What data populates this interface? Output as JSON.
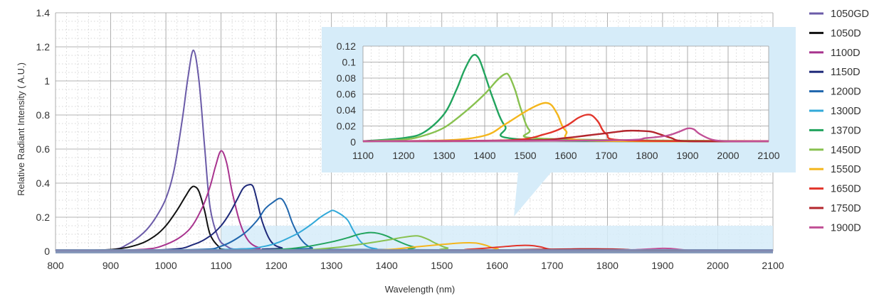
{
  "chart_data": [
    {
      "type": "line",
      "title": "",
      "xlabel": "Wavelength (nm)",
      "ylabel": "Relative Radiant Intensity ( A.U.)",
      "xlim": [
        800,
        2100
      ],
      "ylim": [
        0,
        1.4
      ],
      "xticks": [
        "800",
        "900",
        "1000",
        "1100",
        "1200",
        "1300",
        "1400",
        "1500",
        "1600",
        "1700",
        "1800",
        "1900",
        "2000",
        "2100"
      ],
      "yticks": [
        "0",
        "0.2",
        "0.4",
        "0.6",
        "0.8",
        "1",
        "1.2",
        "1.4"
      ],
      "grid": true,
      "legend_position": "right",
      "series": [
        {
          "name": "1050GD",
          "color": "#6b5ba8",
          "x": [
            800,
            900,
            930,
            960,
            980,
            1000,
            1015,
            1030,
            1040,
            1050,
            1060,
            1070,
            1080,
            1095,
            1110,
            1130,
            1200,
            2100
          ],
          "y": [
            0.005,
            0.01,
            0.04,
            0.11,
            0.19,
            0.31,
            0.48,
            0.78,
            1.02,
            1.18,
            1.0,
            0.62,
            0.26,
            0.08,
            0.03,
            0.01,
            0.005,
            0.005
          ]
        },
        {
          "name": "1050D",
          "color": "#111111",
          "x": [
            800,
            900,
            950,
            980,
            1000,
            1020,
            1035,
            1045,
            1052,
            1060,
            1070,
            1080,
            1095,
            1110,
            1200,
            2100
          ],
          "y": [
            0.005,
            0.01,
            0.04,
            0.09,
            0.15,
            0.24,
            0.32,
            0.37,
            0.38,
            0.35,
            0.24,
            0.1,
            0.03,
            0.01,
            0.005,
            0.005
          ]
        },
        {
          "name": "1100D",
          "color": "#a8338e",
          "x": [
            800,
            950,
            1000,
            1040,
            1065,
            1080,
            1090,
            1100,
            1110,
            1120,
            1135,
            1150,
            1170,
            1200,
            2100
          ],
          "y": [
            0.005,
            0.01,
            0.04,
            0.12,
            0.25,
            0.38,
            0.5,
            0.59,
            0.52,
            0.35,
            0.16,
            0.06,
            0.02,
            0.01,
            0.005
          ]
        },
        {
          "name": "1150D",
          "color": "#1f2a7a",
          "x": [
            800,
            1000,
            1050,
            1080,
            1100,
            1115,
            1130,
            1140,
            1150,
            1158,
            1165,
            1175,
            1190,
            1210,
            1250,
            2100
          ],
          "y": [
            0.005,
            0.01,
            0.04,
            0.09,
            0.15,
            0.22,
            0.31,
            0.37,
            0.39,
            0.38,
            0.3,
            0.17,
            0.06,
            0.02,
            0.01,
            0.005
          ]
        },
        {
          "name": "1200D",
          "color": "#2066ad",
          "x": [
            800,
            1050,
            1100,
            1140,
            1165,
            1180,
            1195,
            1205,
            1212,
            1220,
            1230,
            1245,
            1265,
            1300,
            2100
          ],
          "y": [
            0.005,
            0.01,
            0.03,
            0.1,
            0.18,
            0.25,
            0.29,
            0.31,
            0.3,
            0.25,
            0.16,
            0.07,
            0.02,
            0.01,
            0.005
          ]
        },
        {
          "name": "1300D",
          "color": "#32a9d9",
          "x": [
            800,
            1100,
            1180,
            1230,
            1260,
            1280,
            1295,
            1302,
            1310,
            1320,
            1330,
            1340,
            1355,
            1380,
            1450,
            2100
          ],
          "y": [
            0.005,
            0.01,
            0.03,
            0.09,
            0.15,
            0.2,
            0.23,
            0.24,
            0.23,
            0.21,
            0.18,
            0.12,
            0.05,
            0.015,
            0.005,
            0.005
          ]
        },
        {
          "name": "1370D",
          "color": "#22a45e",
          "x": [
            800,
            1100,
            1200,
            1250,
            1300,
            1330,
            1350,
            1370,
            1385,
            1400,
            1420,
            1450,
            1500,
            2100
          ],
          "y": [
            0.003,
            0.005,
            0.01,
            0.025,
            0.055,
            0.08,
            0.1,
            0.11,
            0.105,
            0.09,
            0.06,
            0.025,
            0.005,
            0.003
          ]
        },
        {
          "name": "1450D",
          "color": "#88c14f",
          "x": [
            800,
            1200,
            1300,
            1350,
            1400,
            1430,
            1450,
            1460,
            1475,
            1490,
            1510,
            1550,
            2100
          ],
          "y": [
            0.003,
            0.005,
            0.02,
            0.04,
            0.065,
            0.082,
            0.09,
            0.088,
            0.07,
            0.045,
            0.02,
            0.005,
            0.003
          ]
        },
        {
          "name": "1550D",
          "color": "#f4b61d",
          "x": [
            800,
            1300,
            1400,
            1450,
            1500,
            1530,
            1550,
            1565,
            1580,
            1600,
            1650,
            2100
          ],
          "y": [
            0.003,
            0.004,
            0.01,
            0.025,
            0.04,
            0.048,
            0.05,
            0.047,
            0.035,
            0.015,
            0.004,
            0.003
          ]
        },
        {
          "name": "1650D",
          "color": "#e2352b",
          "x": [
            800,
            1450,
            1550,
            1600,
            1630,
            1650,
            1665,
            1680,
            1700,
            1750,
            2100
          ],
          "y": [
            0.003,
            0.004,
            0.012,
            0.024,
            0.032,
            0.035,
            0.033,
            0.025,
            0.01,
            0.004,
            0.003
          ]
        },
        {
          "name": "1750D",
          "color": "#b3262d",
          "x": [
            800,
            1500,
            1600,
            1650,
            1700,
            1730,
            1750,
            1780,
            1810,
            1830,
            1860,
            1900,
            2100
          ],
          "y": [
            0.003,
            0.004,
            0.007,
            0.01,
            0.012,
            0.013,
            0.014,
            0.014,
            0.013,
            0.011,
            0.006,
            0.003,
            0.003
          ]
        },
        {
          "name": "1900D",
          "color": "#c15096",
          "x": [
            800,
            1700,
            1800,
            1850,
            1880,
            1900,
            1915,
            1930,
            1960,
            2000,
            2100
          ],
          "y": [
            0.003,
            0.004,
            0.006,
            0.009,
            0.014,
            0.017,
            0.016,
            0.011,
            0.004,
            0.003,
            0.003
          ]
        }
      ]
    },
    {
      "type": "line",
      "title": "",
      "xlabel": "",
      "ylabel": "",
      "xlim": [
        1100,
        2100
      ],
      "ylim": [
        0,
        0.12
      ],
      "xticks": [
        "1100",
        "1200",
        "1300",
        "1400",
        "1500",
        "1600",
        "1700",
        "1800",
        "1900",
        "2000",
        "2100"
      ],
      "yticks": [
        "0",
        "0.02",
        "0.04",
        "0.06",
        "0.08",
        "0.1",
        "0.12"
      ],
      "grid": true,
      "legend_position": "none",
      "series": [
        {
          "name": "1370D",
          "color": "#22a45e",
          "x": [
            1100,
            1200,
            1250,
            1300,
            1330,
            1350,
            1370,
            1385,
            1400,
            1420,
            1450,
            1500,
            2100
          ],
          "y": [
            0.001,
            0.005,
            0.012,
            0.035,
            0.065,
            0.09,
            0.108,
            0.105,
            0.085,
            0.055,
            0.02,
            0.003,
            0.001
          ]
        },
        {
          "name": "1450D",
          "color": "#88c14f",
          "x": [
            1100,
            1200,
            1250,
            1300,
            1350,
            1400,
            1430,
            1450,
            1460,
            1475,
            1490,
            1510,
            1550,
            2100
          ],
          "y": [
            0.001,
            0.003,
            0.008,
            0.018,
            0.037,
            0.06,
            0.077,
            0.085,
            0.083,
            0.065,
            0.04,
            0.015,
            0.004,
            0.001
          ]
        },
        {
          "name": "1550D",
          "color": "#f4b61d",
          "x": [
            1100,
            1300,
            1400,
            1450,
            1500,
            1530,
            1550,
            1565,
            1580,
            1600,
            1650,
            2100
          ],
          "y": [
            0.001,
            0.002,
            0.008,
            0.022,
            0.038,
            0.046,
            0.049,
            0.046,
            0.034,
            0.014,
            0.002,
            0.001
          ]
        },
        {
          "name": "1650D",
          "color": "#e2352b",
          "x": [
            1100,
            1450,
            1550,
            1600,
            1630,
            1650,
            1665,
            1680,
            1700,
            1750,
            2100
          ],
          "y": [
            0.001,
            0.002,
            0.01,
            0.02,
            0.03,
            0.034,
            0.033,
            0.025,
            0.01,
            0.002,
            0.001
          ]
        },
        {
          "name": "1750D",
          "color": "#b3262d",
          "x": [
            1100,
            1500,
            1600,
            1650,
            1700,
            1730,
            1750,
            1780,
            1810,
            1830,
            1860,
            1900,
            2100
          ],
          "y": [
            0.001,
            0.002,
            0.005,
            0.008,
            0.011,
            0.013,
            0.014,
            0.014,
            0.013,
            0.01,
            0.005,
            0.001,
            0.001
          ]
        },
        {
          "name": "1900D",
          "color": "#c15096",
          "x": [
            1100,
            1700,
            1800,
            1850,
            1880,
            1900,
            1915,
            1930,
            1960,
            2000,
            2100
          ],
          "y": [
            0.001,
            0.002,
            0.005,
            0.008,
            0.013,
            0.017,
            0.016,
            0.01,
            0.003,
            0.001,
            0.001
          ]
        }
      ]
    }
  ],
  "colors": {
    "highlight": "#d6ecf9",
    "grid_major": "#9a9a9a",
    "grid_minor": "#c8c8c8",
    "baseline": "#7a8fb5"
  }
}
